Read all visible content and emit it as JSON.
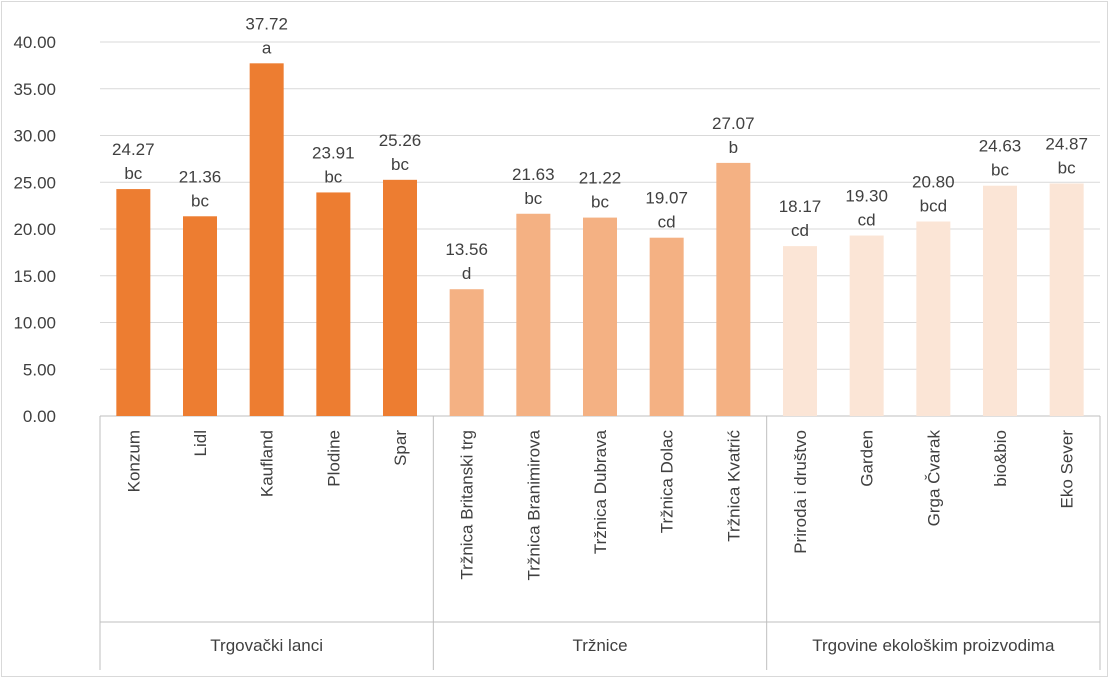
{
  "chart_data": {
    "type": "bar",
    "title": "",
    "xlabel": "",
    "ylabel": "",
    "ylim": [
      0,
      40
    ],
    "yticks": [
      "0.00",
      "5.00",
      "10.00",
      "15.00",
      "20.00",
      "25.00",
      "30.00",
      "35.00",
      "40.00"
    ],
    "grid": true,
    "legend": "none",
    "categories": [
      "Konzum",
      "Lidl",
      "Kaufland",
      "Plodine",
      "Spar",
      "Tržnica Britanski trg",
      "Tržnica Branimirova",
      "Tržnica Dubrava",
      "Tržnica Dolac",
      "Tržnica Kvatrić",
      "Priroda i društvo",
      "Garden",
      "Grga Čvarak",
      "bio&bio",
      "Eko Sever"
    ],
    "values": [
      24.27,
      21.36,
      37.72,
      23.91,
      25.26,
      13.56,
      21.63,
      21.22,
      19.07,
      27.07,
      18.17,
      19.3,
      20.8,
      24.63,
      24.87
    ],
    "value_labels": [
      "24.27",
      "21.36",
      "37.72",
      "23.91",
      "25.26",
      "13.56",
      "21.63",
      "21.22",
      "19.07",
      "27.07",
      "18.17",
      "19.30",
      "20.80",
      "24.63",
      "24.87"
    ],
    "significance_letters": [
      "bc",
      "bc",
      "a",
      "bc",
      "bc",
      "d",
      "bc",
      "bc",
      "cd",
      "b",
      "cd",
      "cd",
      "bcd",
      "bc",
      "bc"
    ],
    "groups": [
      {
        "name": "Trgovački lanci",
        "count": 5,
        "color": "#ed7d31"
      },
      {
        "name": "Tržnice",
        "count": 5,
        "color": "#f4b183"
      },
      {
        "name": "Trgovine ekološkim proizvodima",
        "count": 5,
        "color": "#fbe5d6"
      }
    ]
  }
}
